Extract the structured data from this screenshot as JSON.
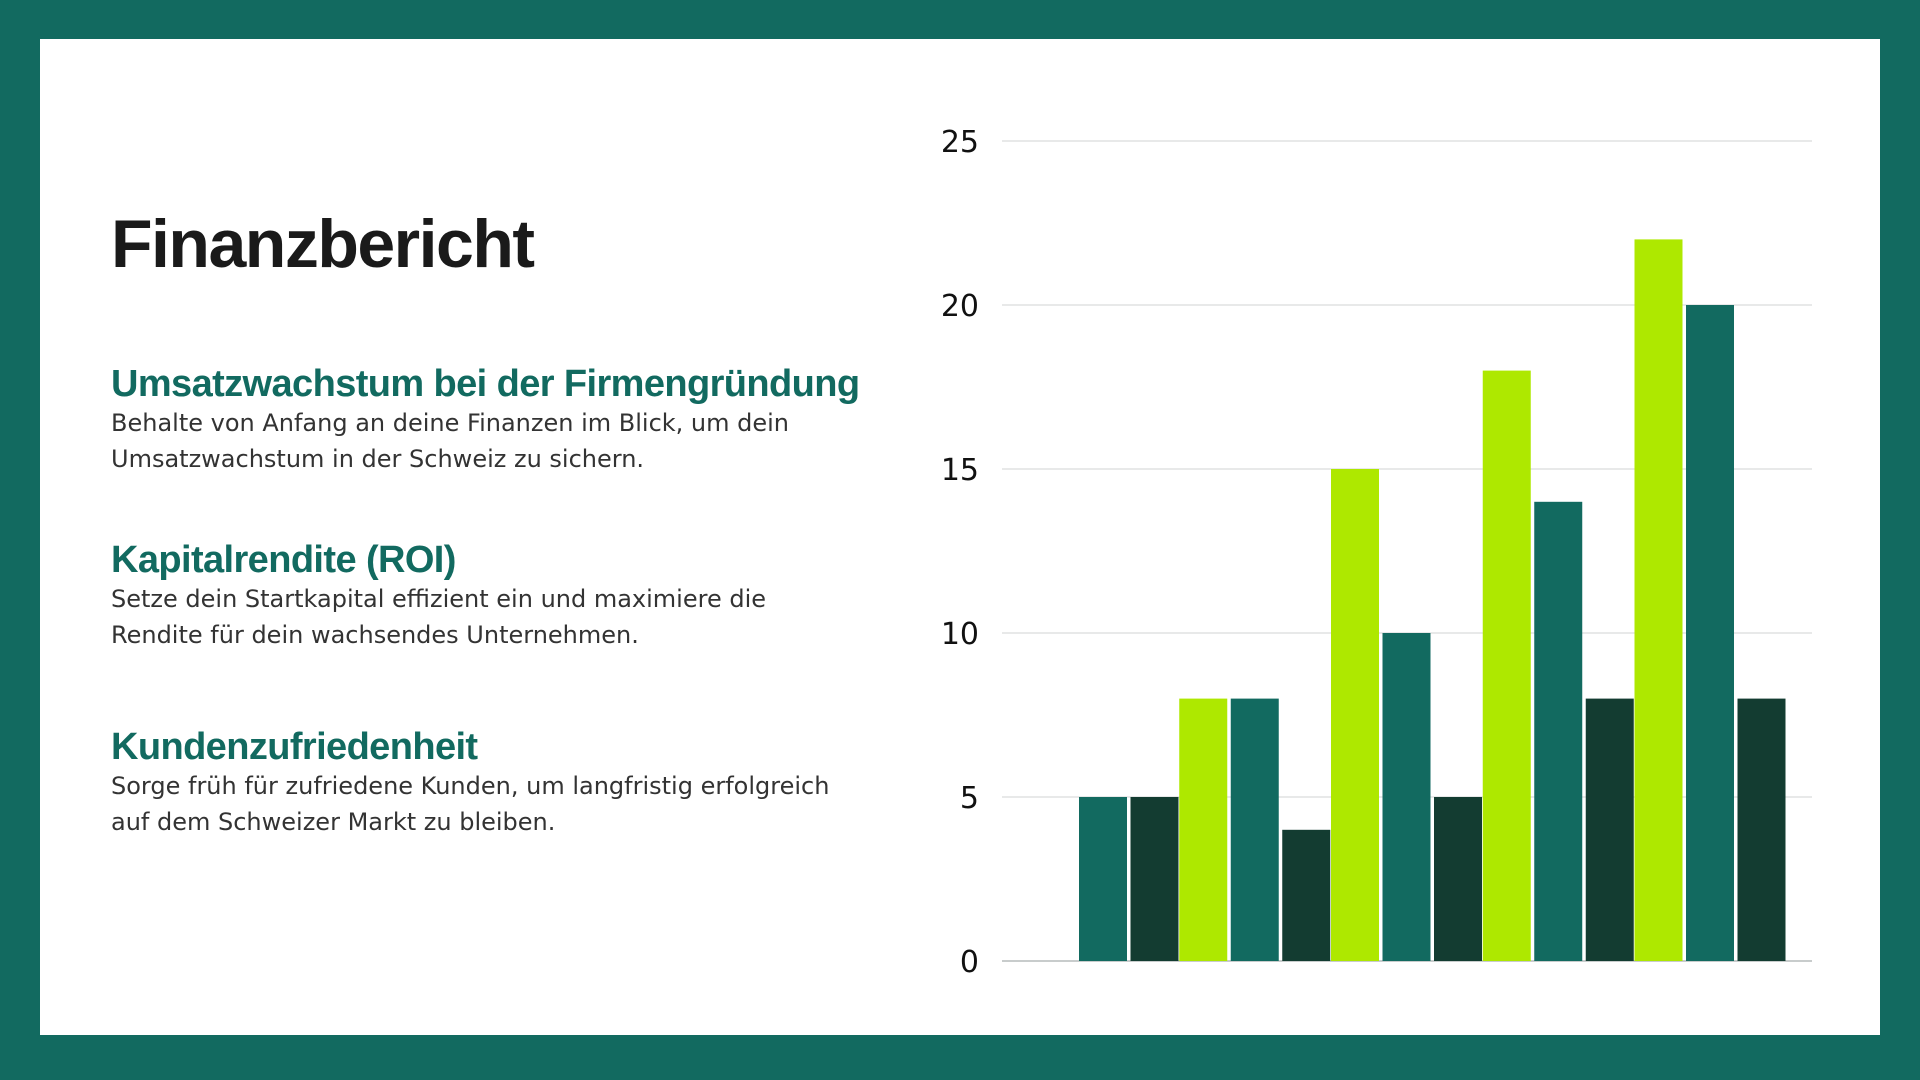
{
  "slide": {
    "title": "Finanzbericht",
    "sections": [
      {
        "heading": "Umsatzwachstum bei der Firmengründung",
        "text": "Behalte von Anfang an deine Finanzen im Blick, um dein Umsatzwachstum in der Schweiz zu sichern."
      },
      {
        "heading": "Kapitalrendite (ROI)",
        "text": "Setze dein Startkapital effizient ein und maximiere die Rendite für dein wachsendes Unternehmen."
      },
      {
        "heading": "Kundenzufriedenheit",
        "text": "Sorge früh für zufriedene Kunden, um langfristig erfolgreich auf dem Schweizer Markt zu bleiben."
      }
    ]
  },
  "colors": {
    "frame": "#126A60",
    "background": "#FFFFFF",
    "heading": "#126A60",
    "series_lime": "#AEE800",
    "series_teal": "#126A60",
    "series_dark": "#133C31",
    "grid": "#D9DCDC"
  },
  "chart_data": {
    "type": "bar",
    "categories": [
      "",
      "",
      "",
      "",
      ""
    ],
    "series": [
      {
        "values": [
          0,
          8,
          15,
          18,
          22
        ],
        "color": "#AEE800"
      },
      {
        "values": [
          5,
          8,
          10,
          14,
          20
        ],
        "color": "#126A60"
      },
      {
        "values": [
          5,
          4,
          5,
          8,
          8
        ],
        "color": "#133C31"
      }
    ],
    "ylim": [
      0,
      25
    ],
    "yticks": [
      0,
      5,
      10,
      15,
      20,
      25
    ],
    "grid": true,
    "legend": "none",
    "title": "",
    "xlabel": "",
    "ylabel": ""
  }
}
